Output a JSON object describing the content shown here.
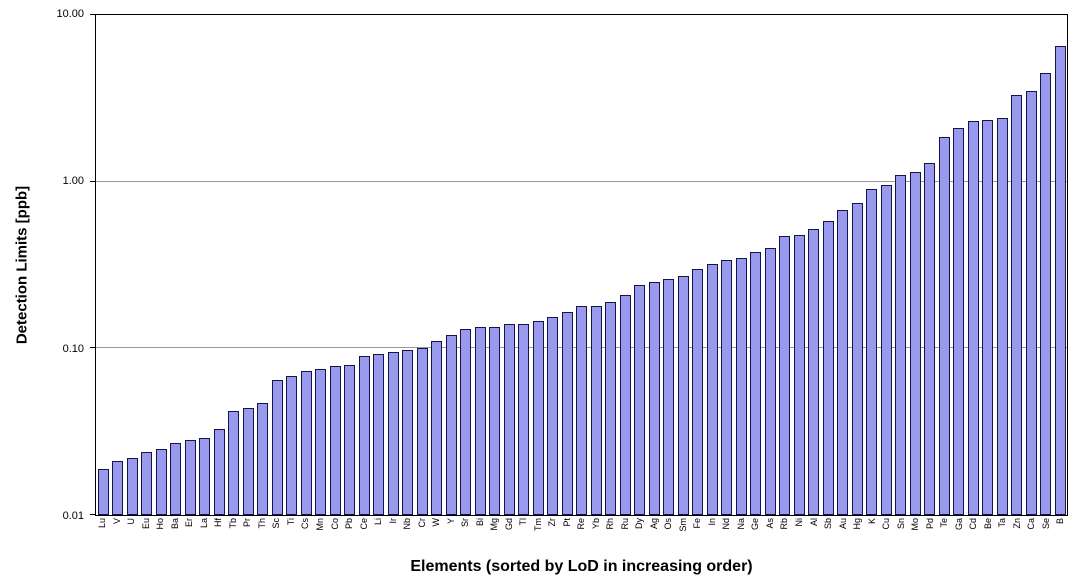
{
  "chart_data": {
    "type": "bar",
    "title": "",
    "xlabel": "Elements (sorted by LoD in increasing order)",
    "ylabel": "Detection Limits [ppb]",
    "y_scale": "log",
    "ylim": [
      0.01,
      10
    ],
    "grid": "major-horizontal",
    "legend": "none",
    "bar_fill": "#9999EE",
    "bar_border": "#14144B",
    "grid_color": "#999999",
    "axis_color": "#000000",
    "yticks": [
      {
        "label": "10.00",
        "value": 10
      },
      {
        "label": "1.00",
        "value": 1
      },
      {
        "label": "0.10",
        "value": 0.1
      },
      {
        "label": "0.01",
        "value": 0.01
      }
    ],
    "categories": [
      "Lu",
      "V",
      "U",
      "Eu",
      "Ho",
      "Ba",
      "Er",
      "La",
      "Hf",
      "Tb",
      "Pr",
      "Th",
      "Sc",
      "Ti",
      "Cs",
      "Mn",
      "Co",
      "Pb",
      "Ce",
      "Li",
      "Ir",
      "Nb",
      "Cr",
      "W",
      "Y",
      "Sr",
      "Bi",
      "Mg",
      "Gd",
      "Tl",
      "Tm",
      "Zr",
      "Pt",
      "Re",
      "Yb",
      "Rh",
      "Ru",
      "Dy",
      "Ag",
      "Os",
      "Sm",
      "Fe",
      "In",
      "Nd",
      "Na",
      "Ge",
      "As",
      "Rb",
      "Ni",
      "Al",
      "Sb",
      "Au",
      "Hg",
      "K",
      "Cu",
      "Sn",
      "Mo",
      "Pd",
      "Te",
      "Ga",
      "Cd",
      "Be",
      "Ta",
      "Zn",
      "Ca",
      "Se",
      "B"
    ],
    "values": [
      0.019,
      0.021,
      0.022,
      0.024,
      0.025,
      0.027,
      0.028,
      0.029,
      0.033,
      0.042,
      0.044,
      0.047,
      0.065,
      0.068,
      0.073,
      0.075,
      0.078,
      0.08,
      0.09,
      0.092,
      0.095,
      0.098,
      0.1,
      0.11,
      0.12,
      0.13,
      0.135,
      0.135,
      0.14,
      0.14,
      0.145,
      0.155,
      0.165,
      0.18,
      0.18,
      0.19,
      0.21,
      0.24,
      0.25,
      0.26,
      0.27,
      0.3,
      0.32,
      0.34,
      0.35,
      0.38,
      0.4,
      0.47,
      0.48,
      0.52,
      0.58,
      0.68,
      0.75,
      0.9,
      0.95,
      1.1,
      1.15,
      1.3,
      1.85,
      2.1,
      2.3,
      2.35,
      2.4,
      3.3,
      3.5,
      4.5,
      6.5
    ]
  }
}
